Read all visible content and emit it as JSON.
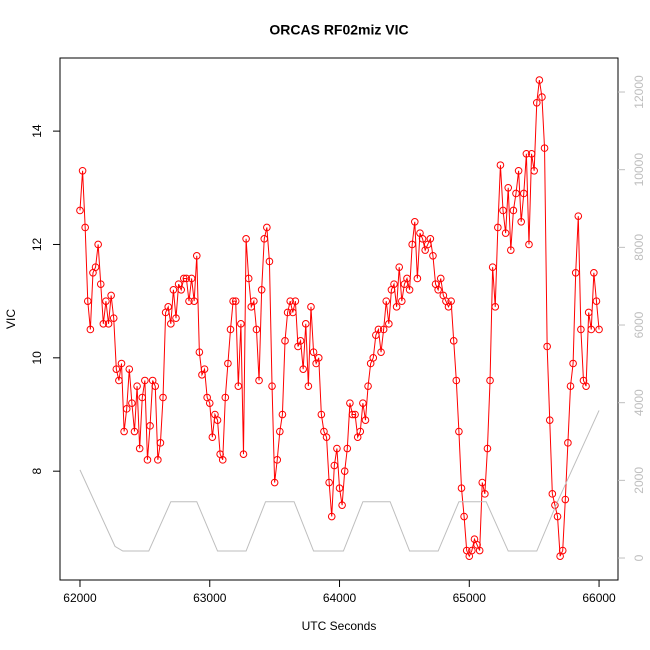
{
  "chart_data": {
    "type": "line",
    "title": "ORCAS RF02miz VIC",
    "x_label": "UTC Seconds",
    "y_label": "VIC",
    "xlim": [
      61846,
      66146
    ],
    "xticks": [
      62000,
      63000,
      64000,
      65000,
      66000
    ],
    "ylim": [
      6.08,
      15.29
    ],
    "yticks": [
      8,
      10,
      12,
      14
    ],
    "y2lim": [
      -566,
      12876
    ],
    "y2ticks": [
      0,
      2000,
      4000,
      6000,
      8000,
      10000,
      12000
    ],
    "y2_color": "#bebebe",
    "series": [
      {
        "color": "#ff0000",
        "markers": true,
        "x": [
          62000,
          62020,
          62040,
          62060,
          62080,
          62100,
          62120,
          62140,
          62160,
          62180,
          62200,
          62220,
          62240,
          62260,
          62280,
          62300,
          62320,
          62340,
          62360,
          62380,
          62400,
          62420,
          62440,
          62460,
          62480,
          62500,
          62520,
          62540,
          62560,
          62580,
          62600,
          62620,
          62640,
          62660,
          62680,
          62700,
          62720,
          62740,
          62760,
          62780,
          62800,
          62820,
          62840,
          62860,
          62880,
          62900,
          62920,
          62940,
          62960,
          62980,
          63000,
          63020,
          63040,
          63060,
          63080,
          63100,
          63120,
          63140,
          63160,
          63180,
          63200,
          63220,
          63240,
          63260,
          63280,
          63300,
          63320,
          63340,
          63360,
          63380,
          63400,
          63420,
          63440,
          63460,
          63480,
          63500,
          63520,
          63540,
          63560,
          63580,
          63600,
          63620,
          63640,
          63660,
          63680,
          63700,
          63720,
          63740,
          63760,
          63780,
          63800,
          63820,
          63840,
          63860,
          63880,
          63900,
          63920,
          63940,
          63960,
          63980,
          64000,
          64020,
          64040,
          64060,
          64080,
          64100,
          64120,
          64140,
          64160,
          64180,
          64200,
          64220,
          64240,
          64260,
          64280,
          64300,
          64320,
          64340,
          64360,
          64380,
          64400,
          64420,
          64440,
          64460,
          64480,
          64500,
          64520,
          64540,
          64560,
          64580,
          64600,
          64620,
          64640,
          64660,
          64680,
          64700,
          64720,
          64740,
          64760,
          64780,
          64800,
          64820,
          64840,
          64860,
          64880,
          64900,
          64920,
          64940,
          64960,
          64980,
          65000,
          65020,
          65040,
          65060,
          65080,
          65100,
          65120,
          65140,
          65160,
          65180,
          65200,
          65220,
          65240,
          65260,
          65280,
          65300,
          65320,
          65340,
          65360,
          65380,
          65400,
          65420,
          65440,
          65460,
          65480,
          65500,
          65520,
          65540,
          65560,
          65580,
          65600,
          65620,
          65640,
          65660,
          65680,
          65700,
          65720,
          65740,
          65760,
          65780,
          65800,
          65820,
          65840,
          65860,
          65880,
          65900,
          65920,
          65940,
          65960,
          65980,
          66000
        ],
        "values": [
          12.6,
          13.3,
          12.3,
          11.0,
          10.5,
          11.5,
          11.6,
          12.0,
          11.3,
          10.6,
          11.0,
          10.6,
          11.1,
          10.7,
          9.8,
          9.6,
          9.9,
          8.7,
          9.1,
          9.8,
          9.2,
          8.7,
          9.5,
          8.4,
          9.3,
          9.6,
          8.2,
          8.8,
          9.6,
          9.5,
          8.2,
          8.5,
          9.3,
          10.8,
          10.9,
          10.6,
          11.2,
          10.7,
          11.3,
          11.2,
          11.4,
          11.4,
          11.0,
          11.4,
          11.0,
          11.8,
          10.1,
          9.7,
          9.8,
          9.3,
          9.2,
          8.6,
          9.0,
          8.9,
          8.3,
          8.2,
          9.3,
          9.9,
          10.5,
          11.0,
          11.0,
          9.5,
          10.6,
          8.3,
          12.1,
          11.4,
          10.9,
          11.0,
          10.5,
          9.6,
          11.2,
          12.1,
          12.3,
          11.7,
          9.5,
          7.8,
          8.2,
          8.7,
          9.0,
          10.3,
          10.8,
          11.0,
          10.8,
          11.0,
          10.2,
          10.3,
          9.8,
          10.6,
          9.5,
          10.9,
          10.1,
          9.9,
          10.0,
          9.0,
          8.7,
          8.6,
          7.8,
          7.2,
          8.1,
          8.4,
          7.7,
          7.4,
          8.0,
          8.4,
          9.2,
          9.0,
          9.0,
          8.6,
          8.7,
          9.2,
          8.9,
          9.5,
          9.9,
          10.0,
          10.4,
          10.5,
          10.1,
          10.5,
          11.0,
          10.6,
          11.2,
          11.3,
          10.9,
          11.6,
          11.0,
          11.3,
          11.4,
          11.2,
          12.0,
          12.4,
          11.4,
          12.2,
          12.1,
          11.9,
          12.0,
          12.1,
          11.8,
          11.3,
          11.2,
          11.4,
          11.1,
          11.0,
          10.9,
          11.0,
          10.3,
          9.6,
          8.7,
          7.7,
          7.2,
          6.6,
          6.5,
          6.6,
          6.8,
          6.7,
          6.6,
          7.8,
          7.6,
          8.4,
          9.6,
          11.6,
          10.9,
          12.3,
          13.4,
          12.6,
          12.2,
          13.0,
          11.9,
          12.6,
          12.9,
          13.3,
          12.4,
          12.9,
          13.6,
          12.0,
          13.6,
          13.3,
          14.5,
          14.9,
          14.6,
          13.7,
          10.2,
          8.9,
          7.6,
          7.4,
          7.2,
          6.5,
          6.6,
          7.5,
          8.5,
          9.5,
          9.9,
          11.5,
          12.5,
          10.5,
          9.6,
          9.5,
          10.8,
          10.5,
          11.5,
          11.0,
          10.5
        ]
      },
      {
        "color": "#bebebe",
        "axis": "y2",
        "markers": false,
        "x": [
          62000,
          62270,
          62330,
          62530,
          62700,
          62900,
          63060,
          63280,
          63430,
          63650,
          63800,
          64030,
          64180,
          64390,
          64540,
          64760,
          64920,
          65130,
          65300,
          65520,
          65680,
          66000
        ],
        "values": [
          2270,
          300,
          180,
          180,
          1450,
          1450,
          180,
          180,
          1450,
          1450,
          180,
          180,
          1450,
          1450,
          180,
          180,
          1450,
          1450,
          180,
          180,
          1450,
          3800
        ]
      }
    ]
  }
}
